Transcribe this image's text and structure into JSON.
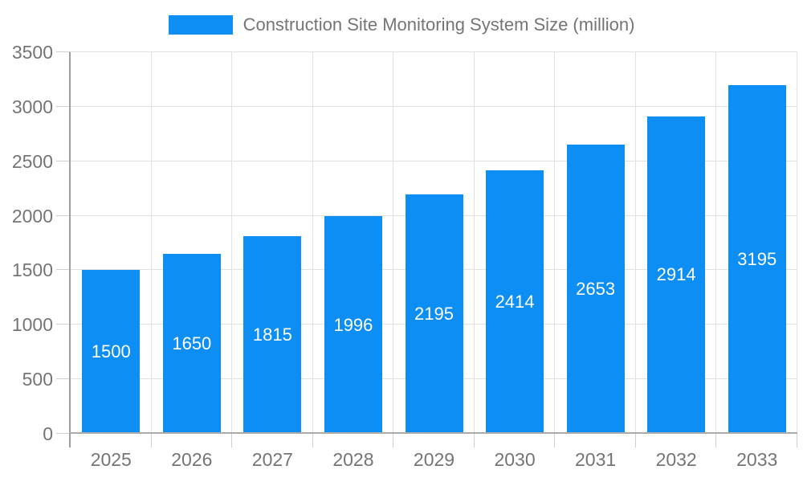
{
  "legend": {
    "label": "Construction Site Monitoring System Size (million)"
  },
  "chart_data": {
    "type": "bar",
    "title": "Construction Site Monitoring System Size (million)",
    "categories": [
      "2025",
      "2026",
      "2027",
      "2028",
      "2029",
      "2030",
      "2031",
      "2032",
      "2033"
    ],
    "values": [
      1500,
      1650,
      1815,
      1996,
      2195,
      2414,
      2653,
      2914,
      3195
    ],
    "xlabel": "",
    "ylabel": "",
    "ylim": [
      0,
      3500
    ],
    "yticks": [
      0,
      500,
      1000,
      1500,
      2000,
      2500,
      3000,
      3500
    ],
    "grid": true,
    "legend_position": "top-center",
    "value_labels": "inside-center",
    "colors": {
      "bar": "#0d8ef4",
      "value_label": "#ffffff",
      "axis_text": "#757575",
      "gridline": "#e2e2e2",
      "tick": "#cfcfcf",
      "y_axis_line": "#9e9e9e",
      "x_baseline": "#ababab",
      "background": "#ffffff"
    }
  }
}
